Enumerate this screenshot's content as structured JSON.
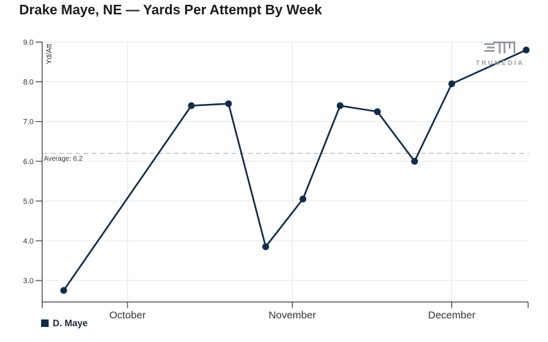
{
  "watermark": {
    "text": "TRUMEDIA"
  },
  "chart_data": {
    "type": "line",
    "title": "Drake Maye, NE — Yards Per Attempt By Week",
    "ylabel": "Yd/Att",
    "grid": true,
    "legend_position": "bottom-left",
    "x_axis": {
      "type": "time",
      "domain": [
        "2024-09-15T00:00:00",
        "2024-12-15T12:00:00"
      ],
      "ticks": [
        {
          "date": "2024-10-01",
          "label": "October"
        },
        {
          "date": "2024-11-01",
          "label": "November"
        },
        {
          "date": "2024-12-01",
          "label": "December"
        }
      ]
    },
    "y_axis": {
      "lim": [
        2.46,
        9.0
      ],
      "ticks": [
        {
          "value": 3,
          "label": "3.0"
        },
        {
          "value": 4,
          "label": "4.0"
        },
        {
          "value": 5,
          "label": "5.0"
        },
        {
          "value": 6,
          "label": "6.0"
        },
        {
          "value": 7,
          "label": "7.0"
        },
        {
          "value": 8,
          "label": "8.0"
        },
        {
          "value": 9,
          "label": "9.0"
        }
      ]
    },
    "average_line": {
      "value": 6.2,
      "label": "Average: 6.2"
    },
    "series": [
      {
        "name": "D. Maye",
        "color": "#122b49",
        "points": [
          {
            "date": "2024-09-19",
            "value": 2.75
          },
          {
            "date": "2024-10-13",
            "value": 7.4
          },
          {
            "date": "2024-10-20",
            "value": 7.45
          },
          {
            "date": "2024-10-27",
            "value": 3.85
          },
          {
            "date": "2024-11-03",
            "value": 5.05
          },
          {
            "date": "2024-11-10",
            "value": 7.4
          },
          {
            "date": "2024-11-17",
            "value": 7.25
          },
          {
            "date": "2024-11-24",
            "value": 6.0
          },
          {
            "date": "2024-12-01",
            "value": 7.95
          },
          {
            "date": "2024-12-15",
            "value": 8.8
          }
        ]
      }
    ]
  },
  "colors": {
    "grid": "#e6e6e6",
    "axis": "#1a1a1a",
    "tick_text": "#333333",
    "average_line": "#a6a6a6",
    "average_text": "#3a3a3a",
    "watermark": "#8d929b"
  }
}
